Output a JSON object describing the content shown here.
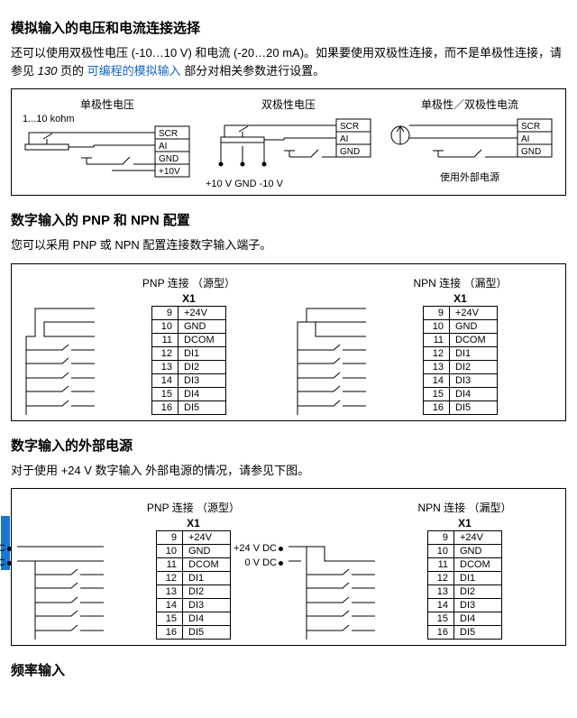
{
  "s1": {
    "title": "模拟输入的电压和电流连接选择",
    "para_a": "还可以使用双极性电压 (-10…10 V) 和电流 (-20…20 mA)。如果要使用双极性连接，而不是单极性连接，请参见 ",
    "page_ref": "130",
    "para_b": " 页的",
    "link": "可编程的模拟输入",
    "para_c": "部分对相关参数进行设置。",
    "d1": {
      "title": "单极性电压",
      "note": "1...10 kohm",
      "pins": [
        "SCR",
        "AI",
        "GND",
        "+10V"
      ]
    },
    "d2": {
      "title": "双极性电压",
      "pins": [
        "SCR",
        "AI",
        "GND"
      ],
      "foot": "+10 V GND -10 V"
    },
    "d3": {
      "title": "单极性／双极性电流",
      "pins": [
        "SCR",
        "AI",
        "GND"
      ],
      "foot": "使用外部电源"
    }
  },
  "s2": {
    "title": "数字输入的 PNP 和 NPN 配置",
    "para": "您可以采用 PNP 或 NPN 配置连接数字输入端子。",
    "pnp": "PNP 连接 （源型）",
    "npn": "NPN 连接 （漏型）",
    "x1": "X1",
    "rows": [
      [
        "9",
        "+24V"
      ],
      [
        "10",
        "GND"
      ],
      [
        "11",
        "DCOM"
      ],
      [
        "12",
        "DI1"
      ],
      [
        "13",
        "DI2"
      ],
      [
        "14",
        "DI3"
      ],
      [
        "15",
        "DI4"
      ],
      [
        "16",
        "DI5"
      ]
    ]
  },
  "s3": {
    "title": "数字输入的外部电源",
    "para": "对于使用 +24 V 数字输入 外部电源的情况，请参见下图。",
    "pnp": "PNP 连接 （源型）",
    "npn": "NPN 连接 （漏型）",
    "x1": "X1",
    "ext_pnp": [
      "0 V DC",
      "+24 V DC"
    ],
    "ext_npn": [
      "+24 V DC",
      "0 V DC"
    ],
    "rows": [
      [
        "9",
        "+24V"
      ],
      [
        "10",
        "GND"
      ],
      [
        "11",
        "DCOM"
      ],
      [
        "12",
        "DI1"
      ],
      [
        "13",
        "DI2"
      ],
      [
        "14",
        "DI3"
      ],
      [
        "15",
        "DI4"
      ],
      [
        "16",
        "DI5"
      ]
    ]
  },
  "s4": {
    "title": "频率输入"
  },
  "style": {
    "border": "#000000",
    "link": "#1565c0"
  }
}
